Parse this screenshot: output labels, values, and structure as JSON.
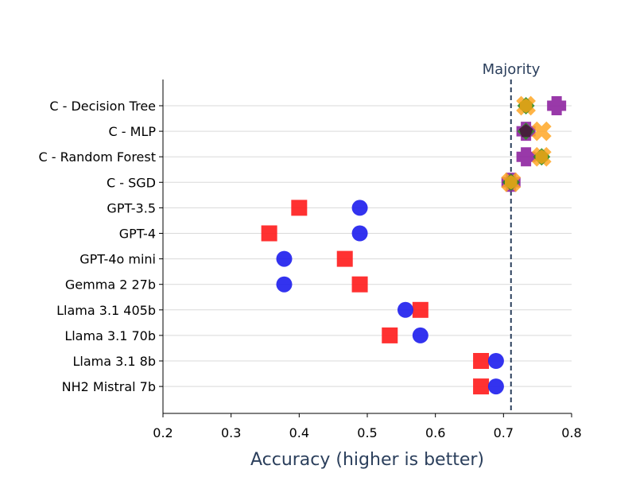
{
  "chart_data": {
    "type": "scatter",
    "title": "",
    "xlabel": "Accuracy (higher is better)",
    "ylabel": "",
    "xlim": [
      0.2,
      0.8
    ],
    "xticks": [
      0.2,
      0.3,
      0.4,
      0.5,
      0.6,
      0.7,
      0.8
    ],
    "xtick_labels": [
      "0.2",
      "0.3",
      "0.4",
      "0.5",
      "0.6",
      "0.7",
      "0.8"
    ],
    "grid": "horizontal",
    "categories": [
      "C - Decision Tree",
      "C - MLP",
      "C - Random Forest",
      "C - SGD",
      "GPT-3.5",
      "GPT-4",
      "GPT-4o mini",
      "Gemma 2 27b",
      "Llama 3.1 405b",
      "Llama 3.1 70b",
      "Llama 3.1 8b",
      "NH2 Mistral 7b"
    ],
    "reference_line": {
      "label": "Majority",
      "x": 0.711,
      "style": "dashed",
      "color": "#2b3f5c"
    },
    "series": [
      {
        "marker": "square",
        "color": "#ff2020",
        "values": [
          null,
          null,
          null,
          null,
          0.4,
          0.356,
          0.467,
          0.489,
          0.578,
          0.533,
          0.667,
          0.667
        ]
      },
      {
        "marker": "circle",
        "color": "#2222ee",
        "values": [
          null,
          null,
          null,
          null,
          0.489,
          0.489,
          0.378,
          0.378,
          0.556,
          0.578,
          0.689,
          0.689
        ]
      },
      {
        "marker": "plus",
        "color": "#8e24a0",
        "values": [
          0.778,
          0.733,
          0.733,
          0.711,
          null,
          null,
          null,
          null,
          null,
          null,
          null,
          null
        ]
      },
      {
        "marker": "x",
        "color": "#ffa726",
        "values": [
          0.733,
          0.756,
          0.756,
          0.711,
          null,
          null,
          null,
          null,
          null,
          null,
          null,
          null
        ]
      },
      {
        "marker": "diamond",
        "color": "#2e8b22",
        "values": [
          0.733,
          0.733,
          0.756,
          0.711,
          null,
          null,
          null,
          null,
          null,
          null,
          null,
          null
        ]
      },
      {
        "marker": "hexagon",
        "color": "#e8a317",
        "values": [
          0.733,
          null,
          0.756,
          0.711,
          null,
          null,
          null,
          null,
          null,
          null,
          null,
          null
        ]
      },
      {
        "marker": "pentagon",
        "color": "#4a0e3e",
        "values": [
          null,
          0.733,
          null,
          null,
          null,
          null,
          null,
          null,
          null,
          null,
          null,
          null
        ]
      }
    ]
  }
}
